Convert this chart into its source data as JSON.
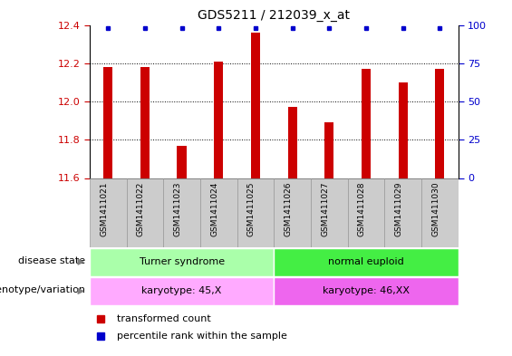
{
  "title": "GDS5211 / 212039_x_at",
  "samples": [
    "GSM1411021",
    "GSM1411022",
    "GSM1411023",
    "GSM1411024",
    "GSM1411025",
    "GSM1411026",
    "GSM1411027",
    "GSM1411028",
    "GSM1411029",
    "GSM1411030"
  ],
  "transformed_counts": [
    12.18,
    12.18,
    11.77,
    12.21,
    12.36,
    11.97,
    11.89,
    12.17,
    12.1,
    12.17
  ],
  "ylim_left": [
    11.6,
    12.4
  ],
  "ylim_right": [
    0,
    100
  ],
  "yticks_left": [
    11.6,
    11.8,
    12.0,
    12.2,
    12.4
  ],
  "yticks_right": [
    0,
    25,
    50,
    75,
    100
  ],
  "bar_color": "#cc0000",
  "dot_color": "#0000cc",
  "bar_width": 0.25,
  "disease_state_groups": [
    {
      "label": "Turner syndrome",
      "start": 0,
      "end": 5,
      "color": "#aaffaa"
    },
    {
      "label": "normal euploid",
      "start": 5,
      "end": 10,
      "color": "#44ee44"
    }
  ],
  "genotype_groups": [
    {
      "label": "karyotype: 45,X",
      "start": 0,
      "end": 5,
      "color": "#ffaaff"
    },
    {
      "label": "karyotype: 46,XX",
      "start": 5,
      "end": 10,
      "color": "#ee66ee"
    }
  ],
  "legend_items": [
    {
      "label": "transformed count",
      "color": "#cc0000"
    },
    {
      "label": "percentile rank within the sample",
      "color": "#0000cc"
    }
  ],
  "row_labels": [
    "disease state",
    "genotype/variation"
  ],
  "tick_label_color_left": "#cc0000",
  "tick_label_color_right": "#0000cc",
  "sample_bg_color": "#cccccc",
  "sample_border_color": "#999999"
}
